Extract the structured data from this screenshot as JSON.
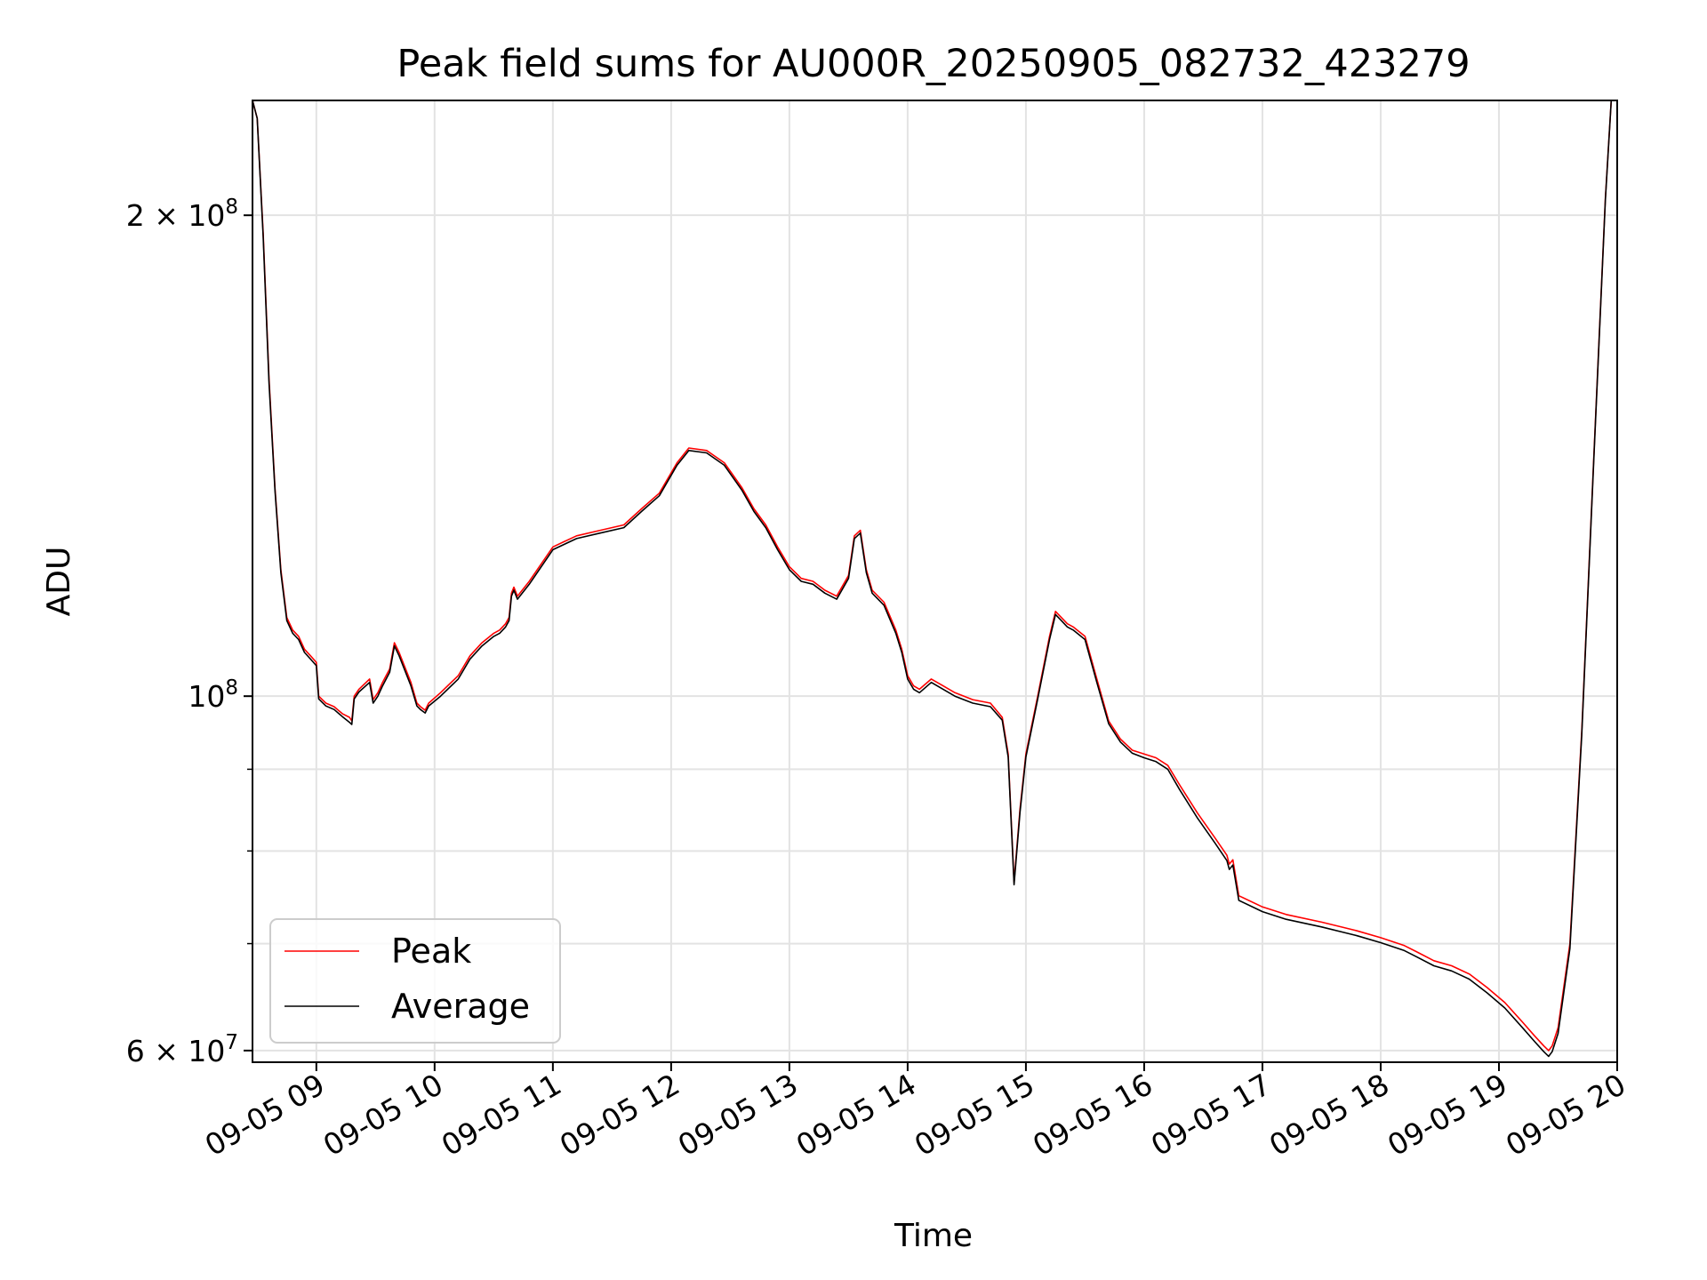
{
  "chart_data": {
    "type": "line",
    "title": "Peak field sums for AU000R_20250905_082732_423279",
    "xlabel": "Time",
    "ylabel": "ADU",
    "yscale": "log",
    "grid": true,
    "legend_position": "lower-left",
    "xlim": [
      8.46,
      20.0
    ],
    "ylim": [
      59000000,
      236000000
    ],
    "x_unit": "hours on 09-05",
    "x_ticks": [
      {
        "value": 9,
        "label": "09-05 09"
      },
      {
        "value": 10,
        "label": "09-05 10"
      },
      {
        "value": 11,
        "label": "09-05 11"
      },
      {
        "value": 12,
        "label": "09-05 12"
      },
      {
        "value": 13,
        "label": "09-05 13"
      },
      {
        "value": 14,
        "label": "09-05 14"
      },
      {
        "value": 15,
        "label": "09-05 15"
      },
      {
        "value": 16,
        "label": "09-05 16"
      },
      {
        "value": 17,
        "label": "09-05 17"
      },
      {
        "value": 18,
        "label": "09-05 18"
      },
      {
        "value": 19,
        "label": "09-05 19"
      },
      {
        "value": 20,
        "label": "09-05 20"
      }
    ],
    "y_ticks": [
      {
        "value": 60000000,
        "base": "6 × 10",
        "exp": "7"
      },
      {
        "value": 100000000,
        "base": "10",
        "exp": "8"
      },
      {
        "value": 200000000,
        "base": "2 × 10",
        "exp": "8"
      }
    ],
    "y_minor_ticks": [
      70000000,
      80000000,
      90000000
    ],
    "x": [
      8.46,
      8.5,
      8.55,
      8.6,
      8.65,
      8.7,
      8.75,
      8.8,
      8.85,
      8.9,
      8.95,
      9.0,
      9.02,
      9.08,
      9.15,
      9.22,
      9.28,
      9.3,
      9.32,
      9.36,
      9.45,
      9.48,
      9.52,
      9.56,
      9.62,
      9.66,
      9.7,
      9.8,
      9.85,
      9.88,
      9.92,
      9.95,
      10.05,
      10.2,
      10.3,
      10.4,
      10.5,
      10.55,
      10.6,
      10.63,
      10.65,
      10.67,
      10.7,
      10.8,
      11.0,
      11.1,
      11.2,
      11.4,
      11.6,
      11.75,
      11.9,
      12.05,
      12.15,
      12.3,
      12.45,
      12.6,
      12.7,
      12.8,
      12.9,
      13.0,
      13.1,
      13.2,
      13.3,
      13.4,
      13.5,
      13.55,
      13.6,
      13.65,
      13.7,
      13.8,
      13.9,
      13.95,
      14.0,
      14.05,
      14.1,
      14.2,
      14.3,
      14.4,
      14.55,
      14.7,
      14.8,
      14.85,
      14.9,
      14.95,
      15.0,
      15.1,
      15.2,
      15.25,
      15.3,
      15.35,
      15.4,
      15.5,
      15.6,
      15.7,
      15.8,
      15.9,
      16.0,
      16.1,
      16.2,
      16.3,
      16.45,
      16.6,
      16.7,
      16.72,
      16.75,
      16.8,
      17.0,
      17.2,
      17.5,
      17.7,
      17.8,
      18.0,
      18.2,
      18.3,
      18.45,
      18.6,
      18.75,
      18.9,
      19.05,
      19.2,
      19.3,
      19.38,
      19.42,
      19.45,
      19.5,
      19.6,
      19.7,
      19.8,
      19.9,
      19.95
    ],
    "series": [
      {
        "name": "Peak",
        "color": "#ff0000",
        "values": [
          236000000,
          230000000,
          195000000,
          158000000,
          135000000,
          120000000,
          112000000,
          110000000,
          109000000,
          107000000,
          106000000,
          105000000,
          100000000,
          99000000,
          98500000,
          97500000,
          97000000,
          96500000,
          100000000,
          101000000,
          102500000,
          99500000,
          100500000,
          102000000,
          104000000,
          108000000,
          106500000,
          102000000,
          99000000,
          98500000,
          98000000,
          99000000,
          100500000,
          103000000,
          106000000,
          108000000,
          109500000,
          110000000,
          111000000,
          112000000,
          116000000,
          117000000,
          115500000,
          118000000,
          124000000,
          125000000,
          126000000,
          127000000,
          128000000,
          131000000,
          134000000,
          140000000,
          143000000,
          142500000,
          140000000,
          135000000,
          131000000,
          128000000,
          124000000,
          120500000,
          118500000,
          118000000,
          116500000,
          115500000,
          119000000,
          126000000,
          127000000,
          120000000,
          116500000,
          114500000,
          110000000,
          107000000,
          103000000,
          101500000,
          101000000,
          102500000,
          101500000,
          100500000,
          99500000,
          99000000,
          97000000,
          92000000,
          76500000,
          85000000,
          92000000,
          100000000,
          109000000,
          113000000,
          112000000,
          111000000,
          110500000,
          109000000,
          102500000,
          96500000,
          94000000,
          92500000,
          92000000,
          91500000,
          90500000,
          88000000,
          84500000,
          81500000,
          79500000,
          78500000,
          79000000,
          75000000,
          73800000,
          73000000,
          72200000,
          71600000,
          71300000,
          70600000,
          69800000,
          69200000,
          68300000,
          67800000,
          67000000,
          65700000,
          64300000,
          62500000,
          61300000,
          60400000,
          60000000,
          60400000,
          62000000,
          70000000,
          95000000,
          140000000,
          205000000,
          236000000
        ]
      },
      {
        "name": "Average",
        "color": "#000000",
        "values": [
          236000000,
          230000000,
          194000000,
          157000000,
          134500000,
          119500000,
          111500000,
          109500000,
          108500000,
          106500000,
          105500000,
          104500000,
          99600000,
          98600000,
          98100000,
          97100000,
          96300000,
          96000000,
          99600000,
          100600000,
          102000000,
          99000000,
          100000000,
          101500000,
          103500000,
          107500000,
          106000000,
          101500000,
          98600000,
          98100000,
          97600000,
          98600000,
          100000000,
          102500000,
          105500000,
          107500000,
          109000000,
          109500000,
          110500000,
          111500000,
          115500000,
          116500000,
          115000000,
          117500000,
          123500000,
          124500000,
          125500000,
          126500000,
          127500000,
          130500000,
          133500000,
          139500000,
          142500000,
          142000000,
          139500000,
          134500000,
          130500000,
          127500000,
          123500000,
          120000000,
          118000000,
          117500000,
          116000000,
          115000000,
          118500000,
          125500000,
          126500000,
          119500000,
          116000000,
          114000000,
          109500000,
          106500000,
          102500000,
          101000000,
          100500000,
          102000000,
          101000000,
          100000000,
          99000000,
          98500000,
          96600000,
          91600000,
          76200000,
          84600000,
          91600000,
          99600000,
          108500000,
          112500000,
          111500000,
          110500000,
          110000000,
          108500000,
          102000000,
          96100000,
          93600000,
          92100000,
          91500000,
          91000000,
          90000000,
          87400000,
          83900000,
          80900000,
          78900000,
          77900000,
          78400000,
          74500000,
          73300000,
          72500000,
          71700000,
          71100000,
          70800000,
          70100000,
          69300000,
          68700000,
          67800000,
          67300000,
          66500000,
          65200000,
          63800000,
          62000000,
          60800000,
          59900000,
          59500000,
          59900000,
          61500000,
          69500000,
          94500000,
          139500000,
          204500000,
          236000000
        ]
      }
    ],
    "legend": [
      {
        "name": "Peak",
        "color": "#ff0000"
      },
      {
        "name": "Average",
        "color": "#000000"
      }
    ]
  }
}
